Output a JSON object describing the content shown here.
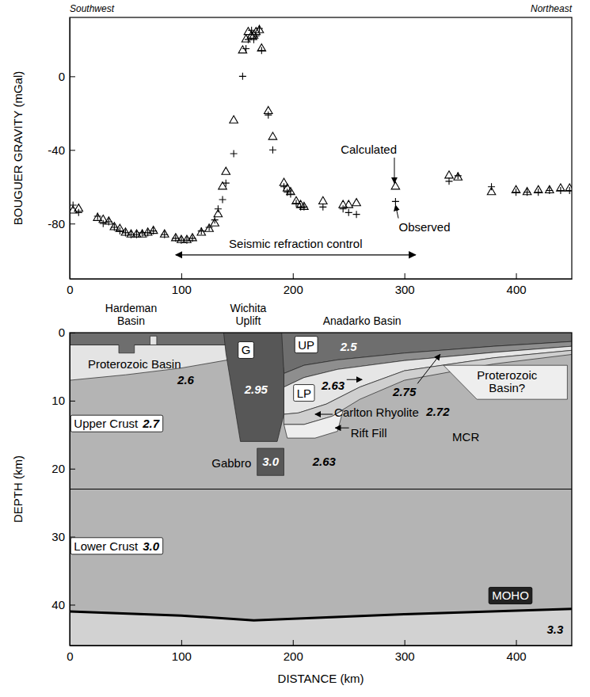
{
  "chart_data": [
    {
      "type": "scatter",
      "ylabel": "BOUGUER GRAVITY (mGal)",
      "direction_labels": [
        "Southwest",
        "Northeast"
      ],
      "xlim": [
        0,
        450
      ],
      "xticks": [
        0,
        100,
        200,
        300,
        400
      ],
      "ylim": [
        -110,
        32
      ],
      "yticks": [
        -80,
        -40,
        0
      ],
      "x": [
        3,
        8,
        25,
        30,
        35,
        40,
        45,
        50,
        55,
        60,
        65,
        70,
        75,
        85,
        95,
        100,
        105,
        110,
        118,
        125,
        130,
        133,
        137,
        140,
        147,
        155,
        158,
        160,
        163,
        165,
        167,
        170,
        172,
        178,
        182,
        192,
        195,
        198,
        203,
        207,
        210,
        227,
        245,
        250,
        257,
        292,
        340,
        348,
        378,
        400,
        410,
        420,
        430,
        440,
        448
      ],
      "series": [
        {
          "name": "Calculated",
          "marker": "triangle",
          "color": "#000000",
          "values": [
            -73,
            -72,
            -77,
            -78,
            -79,
            -82,
            -83,
            -85,
            -86,
            -86,
            -86,
            -85,
            -84,
            -86,
            -88,
            -89,
            -89,
            -88,
            -85,
            -83,
            -80,
            -75,
            -60,
            -52,
            -24,
            14,
            20,
            24,
            22,
            22,
            24,
            25,
            15,
            -19,
            -33,
            -58,
            -61,
            -63,
            -68,
            -70,
            -71,
            -68,
            -70,
            -70,
            -69,
            -60,
            -54,
            -55,
            -63,
            -62,
            -63,
            -62,
            -62,
            -61,
            -61
          ],
          "label_at": [
            268,
            -42
          ],
          "arrow_to": [
            291,
            -58
          ]
        },
        {
          "name": "Observed",
          "marker": "plus",
          "color": "#000000",
          "values": [
            -70,
            -74,
            -76,
            -80,
            -79,
            -82,
            -84,
            -85,
            -86,
            -86,
            -85,
            -85,
            -84,
            -86,
            -88,
            -89,
            -89,
            -88,
            -84,
            -82,
            -78,
            -72,
            -67,
            -58,
            -42,
            0,
            15,
            20,
            25,
            20,
            22,
            26,
            14,
            -21,
            -40,
            -60,
            -63,
            -64,
            -69,
            -71,
            -71,
            -71,
            -72,
            -74,
            -75,
            -68,
            -57,
            -54,
            -60,
            -63,
            -63,
            -63,
            -62,
            -62,
            -62
          ],
          "label_at": [
            318,
            -84
          ],
          "arrow_to": [
            292,
            -70
          ]
        }
      ],
      "refraction": {
        "text": "Seismic refraction control",
        "span": [
          95,
          310
        ],
        "y": -97
      }
    },
    {
      "type": "cross_section",
      "xlabel": "DISTANCE (km)",
      "ylabel": "DEPTH (km)",
      "xlim": [
        0,
        450
      ],
      "xticks": [
        0,
        100,
        200,
        300,
        400
      ],
      "ylim": [
        0,
        46
      ],
      "yticks": [
        0,
        10,
        20,
        30,
        40
      ],
      "headers": [
        {
          "text": [
            "Hardeman",
            "Basin"
          ],
          "x": 55
        },
        {
          "text": [
            "Wichita",
            "Uplift"
          ],
          "x": 160
        },
        {
          "text": "Anadarko Basin",
          "x": 262
        }
      ],
      "bodies": [
        {
          "color": "#b4b4b4",
          "points": [
            [
              0,
              0
            ],
            [
              450,
              0
            ],
            [
              450,
              46
            ],
            [
              0,
              46
            ]
          ]
        },
        {
          "color": "#d2d2d2",
          "points": [
            [
              0,
              41
            ],
            [
              100,
              41.6
            ],
            [
              165,
              42.3
            ],
            [
              300,
              41.4
            ],
            [
              450,
              40.6
            ],
            [
              450,
              46
            ],
            [
              0,
              46
            ]
          ]
        },
        {
          "color": "#e4e4e4",
          "points": [
            [
              0,
              1.8
            ],
            [
              140,
              1.8
            ],
            [
              142,
              4
            ],
            [
              100,
              5.2
            ],
            [
              50,
              6.2
            ],
            [
              0,
              7
            ]
          ]
        },
        {
          "color": "#6e6e6e",
          "points": [
            [
              0,
              0
            ],
            [
              140,
              0
            ],
            [
              140,
              1.8
            ],
            [
              58,
              1.8
            ],
            [
              58,
              3
            ],
            [
              44,
              3
            ],
            [
              44,
              1.8
            ],
            [
              0,
              1.8
            ]
          ]
        },
        {
          "color": "#e4e4e4",
          "points": [
            [
              72,
              0.5
            ],
            [
              78,
              0.5
            ],
            [
              78,
              1.8
            ],
            [
              72,
              1.8
            ]
          ]
        },
        {
          "color": "#6e6e6e",
          "points": [
            [
              188,
              0
            ],
            [
              450,
              0
            ],
            [
              450,
              1.3
            ],
            [
              380,
              2
            ],
            [
              300,
              3
            ],
            [
              240,
              4
            ],
            [
              210,
              4.8
            ],
            [
              192,
              6
            ]
          ]
        },
        {
          "color": "#8e8e8e",
          "points": [
            [
              192,
              6
            ],
            [
              210,
              4.8
            ],
            [
              240,
              4
            ],
            [
              300,
              3
            ],
            [
              380,
              2
            ],
            [
              450,
              1.3
            ],
            [
              450,
              2
            ],
            [
              380,
              2.9
            ],
            [
              300,
              4.1
            ],
            [
              240,
              5.4
            ],
            [
              210,
              6.6
            ],
            [
              192,
              8
            ]
          ]
        },
        {
          "color": "#e6e6e6",
          "points": [
            [
              192,
              8
            ],
            [
              210,
              6.6
            ],
            [
              240,
              5.4
            ],
            [
              300,
              4.1
            ],
            [
              380,
              2.9
            ],
            [
              450,
              2
            ],
            [
              450,
              2.6
            ],
            [
              380,
              3.7
            ],
            [
              300,
              5.6
            ],
            [
              260,
              8
            ],
            [
              230,
              10.5
            ],
            [
              205,
              11.8
            ],
            [
              192,
              12
            ]
          ]
        },
        {
          "color": "#cfcfcf",
          "points": [
            [
              192,
              12
            ],
            [
              205,
              11.8
            ],
            [
              230,
              10.5
            ],
            [
              260,
              8
            ],
            [
              300,
              5.6
            ],
            [
              380,
              3.7
            ],
            [
              450,
              2.6
            ],
            [
              450,
              3.2
            ],
            [
              380,
              4.6
            ],
            [
              300,
              7
            ],
            [
              260,
              9.8
            ],
            [
              235,
              12.3
            ],
            [
              210,
              13.5
            ],
            [
              192,
              13.5
            ]
          ]
        },
        {
          "color": "#eeeeee",
          "points": [
            [
              192,
              13.5
            ],
            [
              210,
              13.5
            ],
            [
              235,
              12.3
            ],
            [
              245,
              11.4
            ],
            [
              240,
              14.5
            ],
            [
              220,
              15.5
            ],
            [
              195,
              15.5
            ]
          ]
        },
        {
          "color": "#575757",
          "points": [
            [
              138,
              0
            ],
            [
              190,
              0
            ],
            [
              192,
              6
            ],
            [
              192,
              12
            ],
            [
              186,
              16
            ],
            [
              153,
              16
            ],
            [
              146,
              9
            ],
            [
              140,
              3
            ]
          ]
        },
        {
          "color": "#575757",
          "points": [
            [
              168,
              17
            ],
            [
              192,
              17
            ],
            [
              192,
              21
            ],
            [
              168,
              21
            ]
          ]
        },
        {
          "color": "#eeeeee",
          "points": [
            [
              335,
              4.8
            ],
            [
              446,
              4.8
            ],
            [
              446,
              9.8
            ],
            [
              365,
              9.8
            ]
          ]
        }
      ],
      "boundaries": [
        {
          "line_style": "solid",
          "points": [
            [
              0,
              23
            ],
            [
              450,
              23
            ]
          ]
        },
        {
          "line_style": "bold",
          "points": [
            [
              0,
              41
            ],
            [
              100,
              41.6
            ],
            [
              165,
              42.3
            ],
            [
              300,
              41.4
            ],
            [
              450,
              40.6
            ]
          ]
        }
      ],
      "labels": [
        {
          "text": "Proterozoic Basin",
          "x": 58,
          "y": 5.2
        },
        {
          "density": 2.6,
          "x": 104,
          "y": 7.6
        },
        {
          "density": 2.95,
          "x": 167,
          "y": 9,
          "color": "#ffffff"
        },
        {
          "density": 2.5,
          "x": 250,
          "y": 2.7,
          "color": "#ffffff"
        },
        {
          "density": 2.63,
          "x": 236,
          "y": 8.4,
          "arrow_to": [
            262,
            6.9
          ]
        },
        {
          "density": 2.75,
          "x": 300,
          "y": 9.3,
          "arrow_to": [
            332,
            3.2
          ]
        },
        {
          "text": "Carlton Rhyolite",
          "x": 275,
          "y": 12.4,
          "arrow_to": [
            220,
            12
          ]
        },
        {
          "text": "Rift Fill",
          "x": 268,
          "y": 15.4,
          "arrow_to": [
            238,
            14
          ]
        },
        {
          "density": 2.63,
          "x": 228,
          "y": 19.6
        },
        {
          "density": 2.72,
          "x": 330,
          "y": 12.2
        },
        {
          "text": "MCR",
          "x": 355,
          "y": 16
        },
        {
          "text": [
            "Proterozoic",
            "Basin?"
          ],
          "x": 392,
          "y": 6.9
        },
        {
          "text": "Gabbro",
          "x": 145,
          "y": 19.8
        },
        {
          "density": 3.0,
          "x": 180,
          "y": 19.6,
          "color": "#ffffff"
        },
        {
          "density": 3.3,
          "x": 435,
          "y": 44.3
        }
      ],
      "boxed_labels": [
        {
          "text": "G",
          "x": 158,
          "y": 3.2
        },
        {
          "text": "UP",
          "x": 212,
          "y": 2.4
        },
        {
          "text": "LP",
          "x": 210,
          "y": 9.5
        },
        {
          "text": "Upper Crust",
          "density": 2.7,
          "x": 42,
          "y": 14
        },
        {
          "text": "Lower Crust",
          "density": 3.0,
          "x": 42,
          "y": 32
        },
        {
          "text": "MOHO",
          "x": 395,
          "y": 39.3,
          "color": "#222222"
        }
      ]
    }
  ]
}
